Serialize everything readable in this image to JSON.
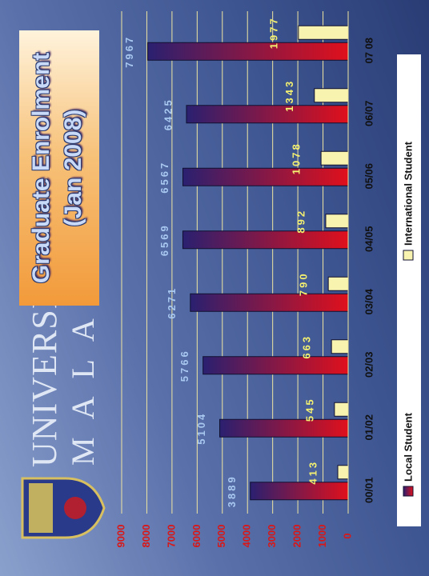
{
  "logo": {
    "line1": "UNIVERSITI",
    "line2": "MALAYA"
  },
  "chart_data": {
    "type": "bar",
    "title": "Graduate Enrolment",
    "subtitle": "(Jan 2008)",
    "categories": [
      "00/01",
      "01/02",
      "02/03",
      "03/04",
      "04/05",
      "05/06",
      "06/07",
      "07 08"
    ],
    "series": [
      {
        "name": "Local Student",
        "color": "#e0101c",
        "label_color": "#a8c8f0",
        "values": [
          3889,
          5104,
          5766,
          6271,
          6569,
          6567,
          6425,
          7967
        ]
      },
      {
        "name": "International Student",
        "color": "#f8f4b0",
        "label_color": "#f4f070",
        "values": [
          413,
          545,
          663,
          790,
          892,
          1078,
          1343,
          1977
        ]
      }
    ],
    "ylim": [
      0,
      9000
    ],
    "yticks": [
      0,
      1000,
      2000,
      3000,
      4000,
      5000,
      6000,
      7000,
      8000,
      9000
    ],
    "grid": true,
    "legend": "bottom"
  }
}
